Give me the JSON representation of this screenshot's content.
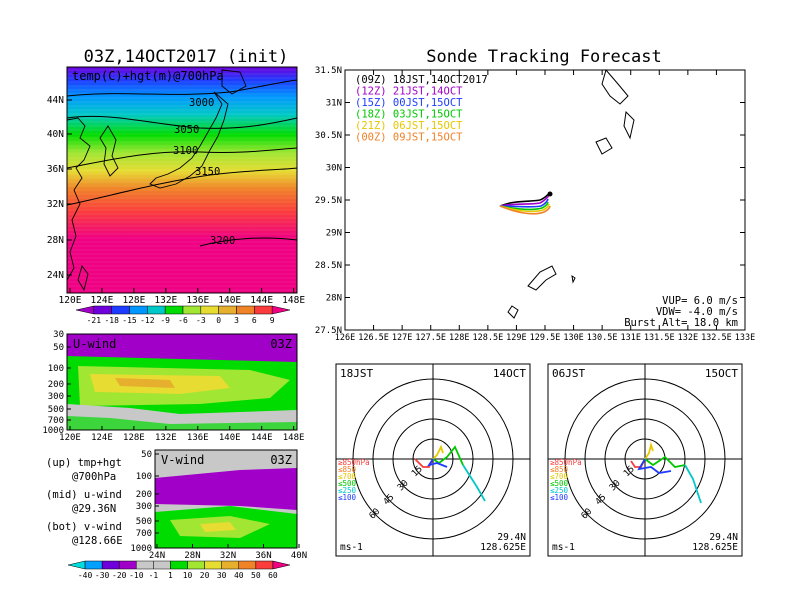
{
  "left": {
    "title": "03Z,14OCT2017 (init)",
    "panel_label": "temp(C)+hgt(m)@700hPa",
    "lat_ticks": [
      "44N",
      "40N",
      "36N",
      "32N",
      "28N",
      "24N"
    ],
    "lon_ticks": [
      "120E",
      "124E",
      "128E",
      "132E",
      "136E",
      "140E",
      "144E",
      "148E"
    ],
    "contour_labels": [
      "3000",
      "3050",
      "3100",
      "3150",
      "3200"
    ],
    "temp_colorbar": {
      "labels": [
        "-21",
        "-18",
        "-15",
        "-12",
        "-9",
        "-6",
        "-3",
        "0",
        "3",
        "6",
        "9"
      ],
      "colors": [
        "#a000c8",
        "#6e00dc",
        "#1e3cff",
        "#0096ff",
        "#00c8c8",
        "#00dc00",
        "#a0e632",
        "#e6dc32",
        "#e6af2d",
        "#f08228",
        "#fa3c3c",
        "#f00082"
      ]
    },
    "uwind": {
      "label": "U-wind",
      "time": "03Z",
      "p_ticks": [
        "30",
        "50",
        "100",
        "200",
        "300",
        "500",
        "700",
        "1000"
      ],
      "lon_ticks": [
        "120E",
        "124E",
        "128E",
        "132E",
        "136E",
        "140E",
        "144E",
        "148E"
      ]
    },
    "vwind": {
      "label": "V-wind",
      "time": "03Z",
      "p_ticks": [
        "50",
        "100",
        "200",
        "300",
        "500",
        "700",
        "1000"
      ],
      "lat_ticks": [
        "24N",
        "28N",
        "32N",
        "36N",
        "40N"
      ]
    },
    "notes": [
      {
        "head": "(up) tmp+hgt",
        "sub": "@700hPa"
      },
      {
        "head": "(mid) u-wind",
        "sub": "@29.36N"
      },
      {
        "head": "(bot) v-wind",
        "sub": "@128.66E"
      }
    ],
    "wind_colorbar": {
      "labels": [
        "-40",
        "-30",
        "-20",
        "-10",
        "-1",
        "1",
        "10",
        "20",
        "30",
        "40",
        "50",
        "60"
      ],
      "colors": [
        "#00dcdc",
        "#00a0ff",
        "#6e00dc",
        "#a000c8",
        "#c8c8c8",
        "#c8c8c8",
        "#00dc00",
        "#a0e632",
        "#e6dc32",
        "#e6af2d",
        "#f08228",
        "#fa3c3c",
        "#f00082"
      ]
    }
  },
  "right": {
    "title": "Sonde Tracking Forecast",
    "legend": [
      {
        "text": "(09Z)  18JST,14OCT2017",
        "color": "#000000"
      },
      {
        "text": "(12Z)  21JST,14OCT",
        "color": "#a000c8"
      },
      {
        "text": "(15Z)  00JST,15OCT",
        "color": "#1e3cff"
      },
      {
        "text": "(18Z)  03JST,15OCT",
        "color": "#00c800"
      },
      {
        "text": "(21Z)  06JST,15OCT",
        "color": "#e6c800"
      },
      {
        "text": "(00Z)  09JST,15OCT",
        "color": "#f08228"
      }
    ],
    "lat_ticks": [
      "31.5N",
      "31N",
      "30.5N",
      "30N",
      "29.5N",
      "29N",
      "28.5N",
      "28N",
      "27.5N"
    ],
    "lon_ticks": [
      "126E",
      "126.5E",
      "127E",
      "127.5E",
      "128E",
      "128.5E",
      "129E",
      "129.5E",
      "130E",
      "130.5E",
      "131E",
      "131.5E",
      "132E",
      "132.5E",
      "133E"
    ],
    "params": [
      "VUP= 6.0 m/s",
      "VDW= -4.0 m/s",
      "Burst Alt= 18.0 km"
    ]
  },
  "hodographs": [
    {
      "time": "18JST",
      "date": "14OCT",
      "lat": "29.4N",
      "lon": "128.625E",
      "units": "ms-1",
      "ring_labels": [
        "15",
        "30",
        "45",
        "60"
      ],
      "levels": [
        {
          "text": "≥850hPa",
          "color": "#fa3c3c"
        },
        {
          "text": "≤850",
          "color": "#f08228"
        },
        {
          "text": "≤700",
          "color": "#e6c800"
        },
        {
          "text": "≤500",
          "color": "#00c800"
        },
        {
          "text": "≤250",
          "color": "#00c8c8"
        },
        {
          "text": "≤100",
          "color": "#1e3cff"
        }
      ]
    },
    {
      "time": "06JST",
      "date": "15OCT",
      "lat": "29.4N",
      "lon": "128.625E",
      "units": "ms-1",
      "ring_labels": [
        "15",
        "30",
        "45",
        "60"
      ],
      "levels": [
        {
          "text": "≥850hPa",
          "color": "#fa3c3c"
        },
        {
          "text": "≤850",
          "color": "#f08228"
        },
        {
          "text": "≤700",
          "color": "#e6c800"
        },
        {
          "text": "≤500",
          "color": "#00c800"
        },
        {
          "text": "≤250",
          "color": "#00c8c8"
        },
        {
          "text": "≤100",
          "color": "#1e3cff"
        }
      ]
    }
  ]
}
